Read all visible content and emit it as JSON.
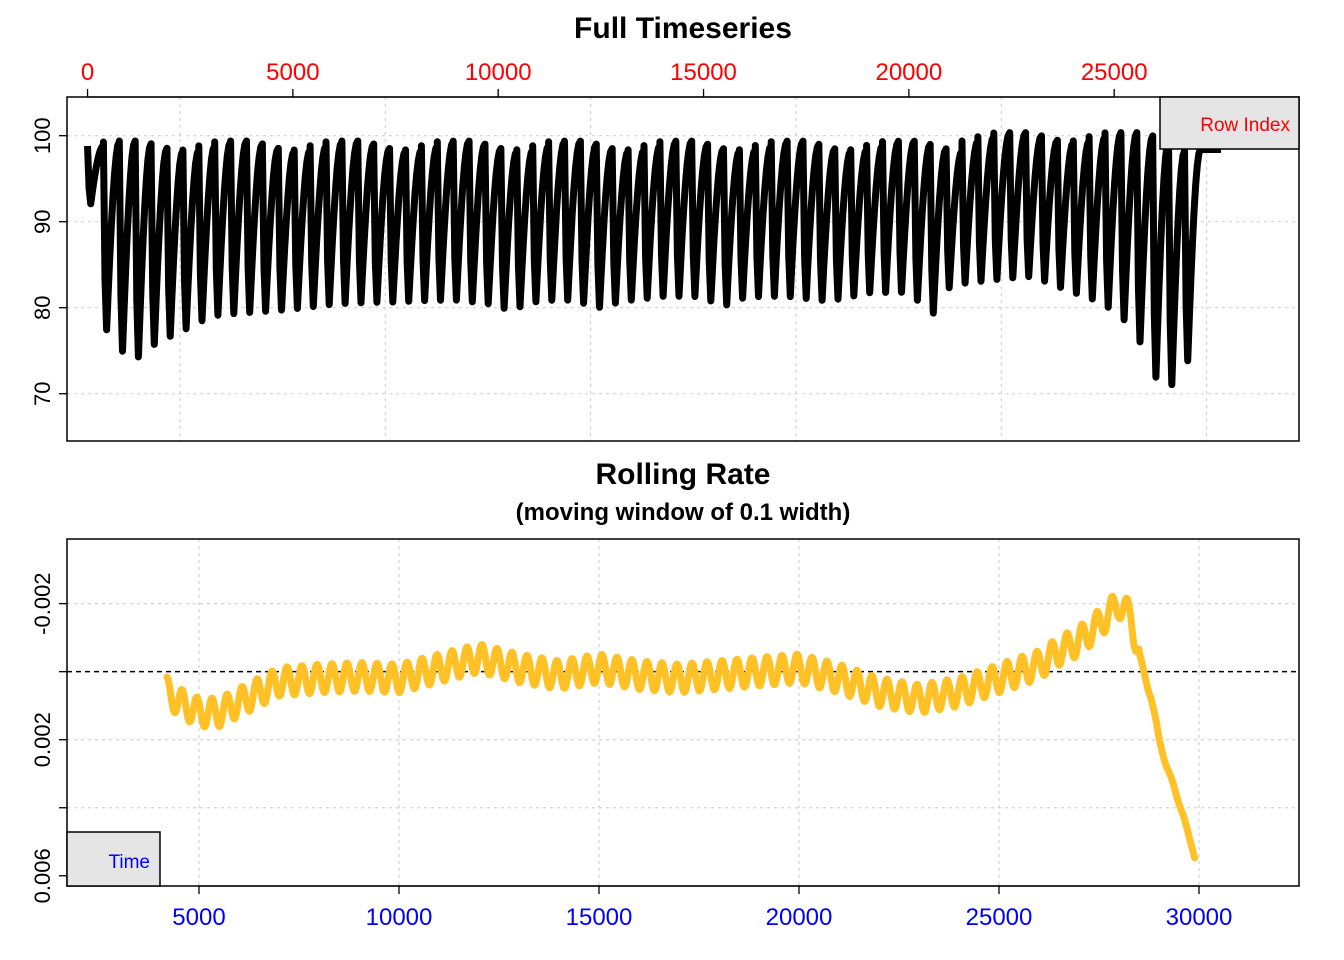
{
  "chart_data": [
    {
      "type": "line",
      "title": "Full Timeseries",
      "subtitle": "",
      "xlabel": "",
      "ylabel": "",
      "x_axis_position": "top",
      "x_axis_color": "#ff0000",
      "xlim": [
        -500,
        29500
      ],
      "ylim": [
        64.5,
        104.5
      ],
      "x_ticks": [
        0,
        5000,
        10000,
        15000,
        20000,
        25000
      ],
      "x_tick_labels": [
        "0",
        "5000",
        "10000",
        "15000",
        "20000",
        "25000"
      ],
      "y_ticks": [
        70,
        80,
        90,
        100
      ],
      "y_tick_labels": [
        "70",
        "80",
        "90",
        "100"
      ],
      "grid": true,
      "grid_x": [
        2250,
        7250,
        12250,
        17250,
        22250,
        27250
      ],
      "grid_y": [
        70,
        80,
        90,
        100
      ],
      "legend": {
        "position": "top-right",
        "entries": [
          "Row Index"
        ]
      },
      "series": [
        {
          "name": "",
          "color": "#000000",
          "style": "thick points",
          "x_range": [
            0,
            27100
          ],
          "cycle_count": 70,
          "baseline": 98.8,
          "points": [
            {
              "x": 0,
              "y": 98.8
            },
            {
              "x": 175,
              "y": 76.5
            },
            {
              "x": 700,
              "y": 74.0
            },
            {
              "x": 1000,
              "y": 70.5
            },
            {
              "x": 1400,
              "y": 72.8
            },
            {
              "x": 1800,
              "y": 74.0
            },
            {
              "x": 2200,
              "y": 75.0
            },
            {
              "x": 2600,
              "y": 76.0
            },
            {
              "x": 3000,
              "y": 77.0
            },
            {
              "x": 4000,
              "y": 77.5
            },
            {
              "x": 5000,
              "y": 78.0
            },
            {
              "x": 6000,
              "y": 78.5
            },
            {
              "x": 7000,
              "y": 78.8
            },
            {
              "x": 8000,
              "y": 79.0
            },
            {
              "x": 9000,
              "y": 79.0
            },
            {
              "x": 10000,
              "y": 78.5
            },
            {
              "x": 10200,
              "y": 77.8
            },
            {
              "x": 11000,
              "y": 79.0
            },
            {
              "x": 12000,
              "y": 79.0
            },
            {
              "x": 12200,
              "y": 77.8
            },
            {
              "x": 13000,
              "y": 79.0
            },
            {
              "x": 14000,
              "y": 79.5
            },
            {
              "x": 15000,
              "y": 79.5
            },
            {
              "x": 15400,
              "y": 78.2
            },
            {
              "x": 16000,
              "y": 79.5
            },
            {
              "x": 17000,
              "y": 79.5
            },
            {
              "x": 18000,
              "y": 79.0
            },
            {
              "x": 19000,
              "y": 80.0
            },
            {
              "x": 20000,
              "y": 80.0
            },
            {
              "x": 20550,
              "y": 77.2
            },
            {
              "x": 21000,
              "y": 81.0
            },
            {
              "x": 22000,
              "y": 81.5
            },
            {
              "x": 23000,
              "y": 82.0
            },
            {
              "x": 23500,
              "y": 81.0
            },
            {
              "x": 24000,
              "y": 80.0
            },
            {
              "x": 24500,
              "y": 79.0
            },
            {
              "x": 25000,
              "y": 77.5
            },
            {
              "x": 25500,
              "y": 75.0
            },
            {
              "x": 25850,
              "y": 70.5
            },
            {
              "x": 26200,
              "y": 67.2
            },
            {
              "x": 26500,
              "y": 69.0
            },
            {
              "x": 26850,
              "y": 72.0
            },
            {
              "x": 27100,
              "y": 75.0
            }
          ]
        }
      ]
    },
    {
      "type": "line",
      "title": "Rolling Rate",
      "subtitle": "(moving window of 0.1 width)",
      "xlabel": "",
      "ylabel": "",
      "x_axis_position": "bottom",
      "x_axis_color": "#0000ff",
      "y_axis_reversed": true,
      "xlim": [
        1700,
        32500
      ],
      "ylim": [
        0.0063,
        -0.0039
      ],
      "x_ticks": [
        5000,
        10000,
        15000,
        20000,
        25000,
        30000
      ],
      "x_tick_labels": [
        "5000",
        "10000",
        "15000",
        "20000",
        "25000",
        "30000"
      ],
      "y_ticks": [
        -0.002,
        0.0,
        0.002,
        0.004,
        0.006
      ],
      "y_tick_labels": [
        "-0.002",
        "",
        "0.002",
        "",
        "0.006"
      ],
      "grid": true,
      "grid_x": [
        5000,
        10000,
        15000,
        20000,
        25000,
        30000
      ],
      "grid_y": [
        -0.002,
        0.002,
        0.004
      ],
      "reference_line": {
        "y": 0.0,
        "style": "dashed",
        "color": "#000000"
      },
      "legend": {
        "position": "bottom-left",
        "entries": [
          "Time"
        ]
      },
      "series": [
        {
          "name": "",
          "color": "#FFC125",
          "x_range": [
            4200,
            29900
          ],
          "oscillation_period": 375,
          "points": [
            {
              "x": 4200,
              "y": 0.00058
            },
            {
              "x": 4500,
              "y": 0.0009
            },
            {
              "x": 5000,
              "y": 0.0012
            },
            {
              "x": 5500,
              "y": 0.0012
            },
            {
              "x": 6000,
              "y": 0.0009
            },
            {
              "x": 6500,
              "y": 0.0006
            },
            {
              "x": 7000,
              "y": 0.0003
            },
            {
              "x": 8000,
              "y": 0.0002
            },
            {
              "x": 9000,
              "y": 0.00015
            },
            {
              "x": 10000,
              "y": 0.0002
            },
            {
              "x": 11000,
              "y": -0.0001
            },
            {
              "x": 12000,
              "y": -0.0004
            },
            {
              "x": 13000,
              "y": -0.0001
            },
            {
              "x": 14000,
              "y": 0.0001
            },
            {
              "x": 15000,
              "y": -0.0001
            },
            {
              "x": 16000,
              "y": 0.0001
            },
            {
              "x": 17000,
              "y": 0.0002
            },
            {
              "x": 18000,
              "y": 0.0001
            },
            {
              "x": 19000,
              "y": 0.0
            },
            {
              "x": 20000,
              "y": -0.0001
            },
            {
              "x": 21000,
              "y": 0.0002
            },
            {
              "x": 22000,
              "y": 0.0006
            },
            {
              "x": 23000,
              "y": 0.0008
            },
            {
              "x": 24000,
              "y": 0.0006
            },
            {
              "x": 25000,
              "y": 0.0002
            },
            {
              "x": 26000,
              "y": -0.0002
            },
            {
              "x": 26500,
              "y": -0.0006
            },
            {
              "x": 27000,
              "y": -0.0009
            },
            {
              "x": 27500,
              "y": -0.0014
            },
            {
              "x": 28000,
              "y": -0.002
            },
            {
              "x": 28300,
              "y": -0.0016
            },
            {
              "x": 28600,
              "y": 0.0
            },
            {
              "x": 28800,
              "y": 0.0007
            },
            {
              "x": 29000,
              "y": 0.002
            },
            {
              "x": 29200,
              "y": 0.0028
            },
            {
              "x": 29400,
              "y": 0.0035
            },
            {
              "x": 29600,
              "y": 0.0042
            },
            {
              "x": 29900,
              "y": 0.0055
            }
          ]
        }
      ]
    }
  ]
}
